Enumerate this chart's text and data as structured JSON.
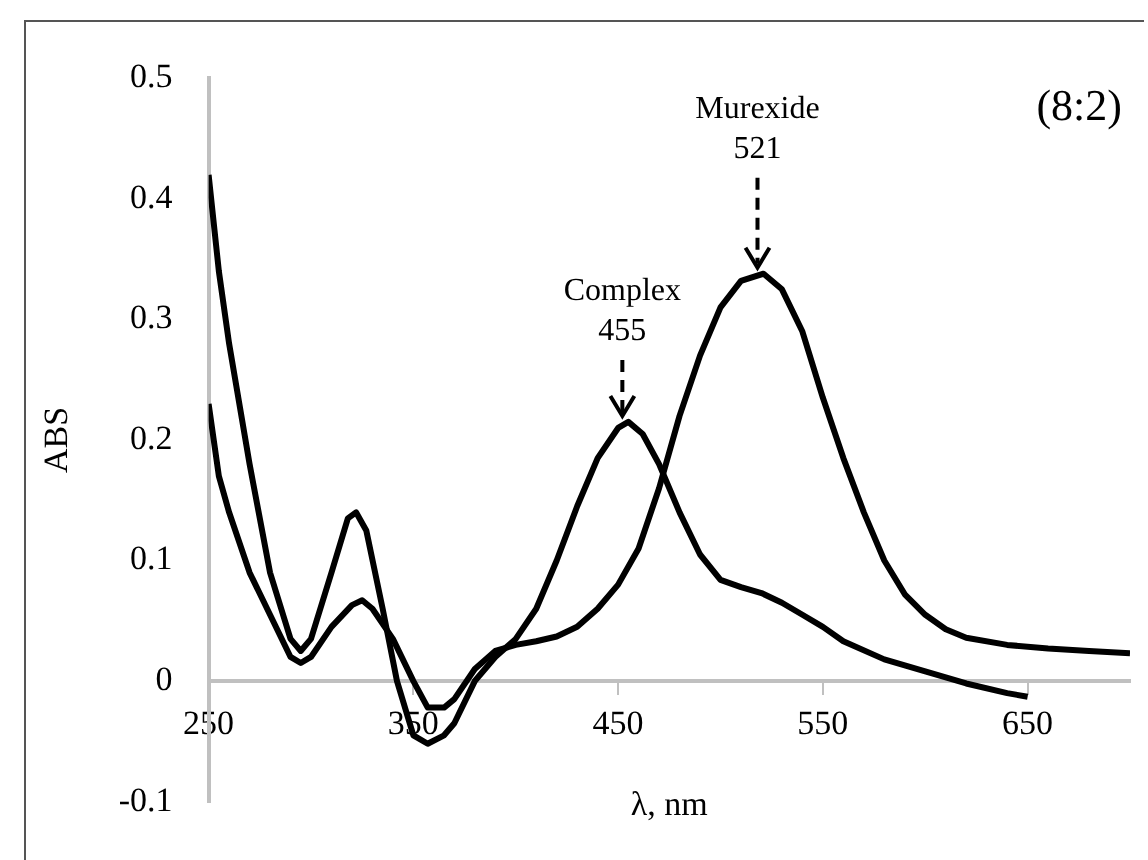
{
  "chart_data": {
    "type": "line",
    "xlabel": "λ, nm",
    "ylabel": "ABS",
    "xlim": [
      250,
      700
    ],
    "xticks": [
      250,
      350,
      450,
      550,
      650
    ],
    "ylim": [
      -0.1,
      0.5
    ],
    "yticks": [
      -0.1,
      0,
      0.1,
      0.2,
      0.3,
      0.4,
      0.5
    ],
    "grid": false,
    "legend": false,
    "marker": "none",
    "line_style": "solid",
    "series": [
      {
        "color": "#000000",
        "x": [
          250,
          255,
          260,
          270,
          280,
          290,
          295,
          300,
          310,
          318,
          322,
          327,
          335,
          342,
          350,
          357,
          365,
          370,
          380,
          390,
          400,
          410,
          420,
          430,
          440,
          450,
          455,
          462,
          470,
          480,
          490,
          500,
          510,
          520,
          530,
          540,
          550,
          560,
          580,
          600,
          620,
          640,
          650
        ],
        "values": [
          0.42,
          0.34,
          0.28,
          0.18,
          0.09,
          0.035,
          0.025,
          0.035,
          0.09,
          0.135,
          0.14,
          0.125,
          0.06,
          0.0,
          -0.045,
          -0.052,
          -0.045,
          -0.035,
          0.0,
          0.02,
          0.035,
          0.06,
          0.1,
          0.145,
          0.185,
          0.21,
          0.215,
          0.205,
          0.18,
          0.14,
          0.105,
          0.084,
          0.078,
          0.073,
          0.065,
          0.055,
          0.045,
          0.033,
          0.018,
          0.008,
          -0.002,
          -0.01,
          -0.013
        ]
      },
      {
        "color": "#000000",
        "x": [
          250,
          255,
          260,
          270,
          280,
          290,
          295,
          300,
          310,
          320,
          325,
          330,
          340,
          350,
          357,
          365,
          370,
          380,
          390,
          400,
          410,
          420,
          430,
          440,
          450,
          460,
          470,
          480,
          490,
          500,
          510,
          521,
          530,
          540,
          550,
          560,
          570,
          580,
          590,
          600,
          610,
          620,
          640,
          660,
          680,
          700
        ],
        "values": [
          0.23,
          0.17,
          0.14,
          0.09,
          0.055,
          0.02,
          0.015,
          0.02,
          0.045,
          0.063,
          0.067,
          0.06,
          0.035,
          0.0,
          -0.022,
          -0.022,
          -0.015,
          0.01,
          0.025,
          0.03,
          0.033,
          0.037,
          0.045,
          0.06,
          0.08,
          0.11,
          0.16,
          0.22,
          0.27,
          0.31,
          0.332,
          0.338,
          0.325,
          0.29,
          0.235,
          0.185,
          0.14,
          0.1,
          0.072,
          0.055,
          0.043,
          0.036,
          0.03,
          0.027,
          0.025,
          0.023
        ]
      }
    ],
    "annotations": [
      {
        "text": "Complex\n455",
        "x": 455,
        "y": 0.215
      },
      {
        "text": "Murexide\n521",
        "x": 521,
        "y": 0.338
      },
      "(8:2)"
    ]
  }
}
